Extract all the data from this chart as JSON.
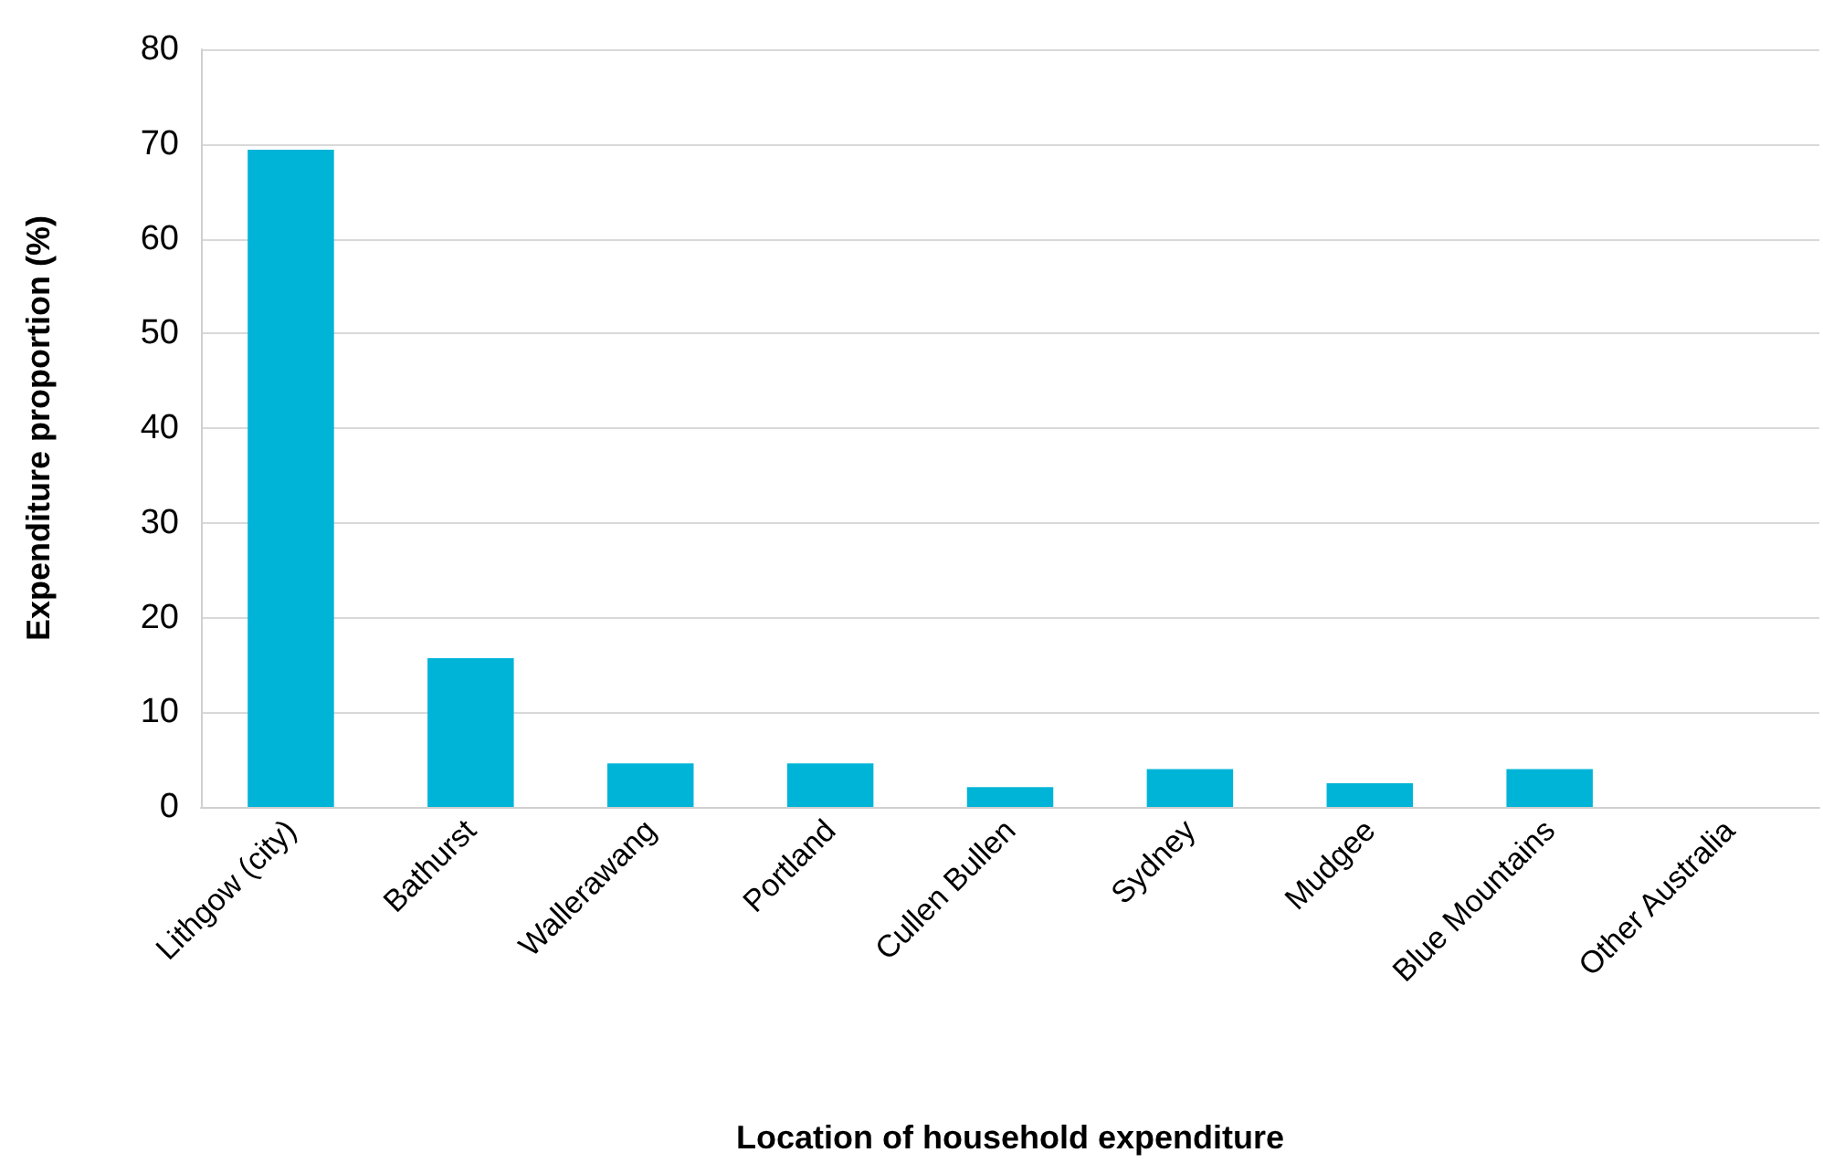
{
  "chart_data": {
    "type": "bar",
    "xlabel": "Location of household expenditure",
    "ylabel": "Expenditure proportion (%)",
    "categories": [
      "Lithgow (city)",
      "Bathurst",
      "Wallerawang",
      "Portland",
      "Cullen Bullen",
      "Sydney",
      "Mudgee",
      "Blue Mountains",
      "Other Australia"
    ],
    "values": [
      69.4,
      15.7,
      4.6,
      4.6,
      2.1,
      4.0,
      2.5,
      4.0,
      0
    ],
    "color": "#00b4d8",
    "ylim": [
      0,
      80
    ],
    "yticks": [
      0,
      10,
      20,
      30,
      40,
      50,
      60,
      70,
      80
    ],
    "grid": "y"
  }
}
